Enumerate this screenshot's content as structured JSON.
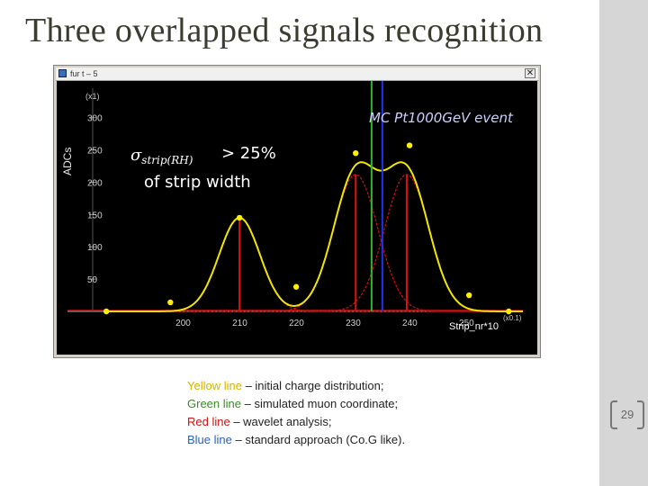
{
  "slide": {
    "title": "Three overlapped signals recognition",
    "page_number": "29"
  },
  "window": {
    "title": "fur t – 5",
    "close_label": "✕"
  },
  "plot": {
    "ylabel": "ADCs",
    "ymult": "(x1)",
    "xlabel": "Strip_nr*10",
    "xmult": "(x0.1)",
    "event_label": "MC Pt1000GeV event",
    "width_note_part1": "> 25%",
    "width_note_part2": "of strip width",
    "sigma_label": "σstrip(RH)"
  },
  "legend": [
    {
      "colored": "Yellow line",
      "rest": " – initial charge distribution;",
      "color": "#d6b400"
    },
    {
      "colored": "Green line",
      "rest": " – simulated muon coordinate;",
      "color": "#3a8a2a"
    },
    {
      "colored": "Red line",
      "rest": " – wavelet analysis;",
      "color": "#cc1010"
    },
    {
      "colored": "Blue line",
      "rest": " – standard approach (Co.G like).",
      "color": "#2a62b8"
    }
  ],
  "chart_data": {
    "type": "line",
    "xlim": [
      186,
      260
    ],
    "ylim": [
      0,
      340
    ],
    "x_ticks": [
      200,
      210,
      220,
      230,
      240,
      250
    ],
    "y_ticks": [
      50,
      100,
      150,
      200,
      250,
      300
    ],
    "y_tick_labels": [
      "50",
      "100",
      "150",
      "200",
      "250",
      "300"
    ],
    "series": [
      {
        "name": "Yellow line",
        "color": "#f2e600",
        "components": [
          {
            "amp": 145,
            "mu": 210,
            "sigma": 3.6
          },
          {
            "amp": 212,
            "mu": 230.5,
            "sigma": 3.9
          },
          {
            "amp": 212,
            "mu": 239.5,
            "sigma": 3.9
          }
        ]
      },
      {
        "name": "Red line",
        "color": "#cc1010",
        "components": [
          {
            "amp": 145,
            "mu": 210,
            "sigma": 3.6
          },
          {
            "amp": 212,
            "mu": 230.5,
            "sigma": 3.9
          },
          {
            "amp": 212,
            "mu": 239.5,
            "sigma": 3.9
          }
        ]
      }
    ],
    "yellow_points": [
      {
        "x": 186.5,
        "y": 0
      },
      {
        "x": 197.8,
        "y": 14
      },
      {
        "x": 210,
        "y": 145
      },
      {
        "x": 220,
        "y": 38
      },
      {
        "x": 230.5,
        "y": 245
      },
      {
        "x": 240,
        "y": 257
      },
      {
        "x": 250.5,
        "y": 25
      },
      {
        "x": 257.5,
        "y": 0
      }
    ],
    "red_stems": [
      210,
      230.5,
      239.5
    ],
    "green_line_x": 233.3,
    "blue_line_x": 235.2
  }
}
